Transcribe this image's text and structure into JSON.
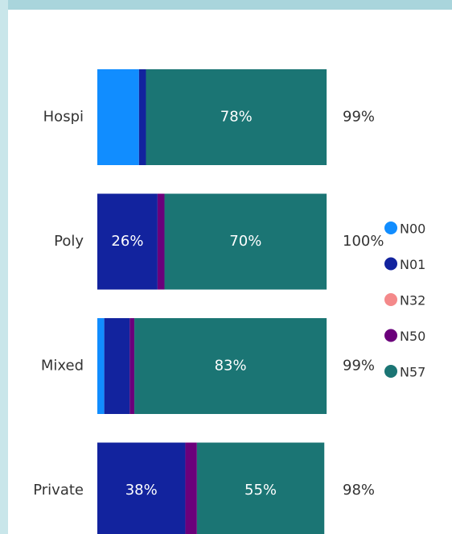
{
  "chart_data": {
    "type": "stacked_bar_horizontal",
    "categories": [
      "Hospi",
      "Poly",
      "Mixed",
      "Private"
    ],
    "series": [
      {
        "name": "N00",
        "color": "#118dff",
        "values": [
          18,
          0,
          3,
          0
        ],
        "value_labels": [
          null,
          null,
          null,
          null
        ]
      },
      {
        "name": "N01",
        "color": "#12239e",
        "values": [
          3,
          26,
          11,
          38
        ],
        "value_labels": [
          null,
          "26%",
          null,
          "38%"
        ]
      },
      {
        "name": "N32",
        "color": "#f4898a",
        "values": [
          0,
          0,
          0,
          0
        ],
        "value_labels": [
          null,
          null,
          null,
          null
        ]
      },
      {
        "name": "N50",
        "color": "#6b007b",
        "values": [
          0,
          3,
          2,
          5
        ],
        "value_labels": [
          null,
          null,
          null,
          null
        ]
      },
      {
        "name": "N57",
        "color": "#1b7574",
        "values": [
          78,
          70,
          83,
          55
        ],
        "value_labels": [
          "78%",
          "70%",
          "83%",
          "55%"
        ]
      }
    ],
    "totals": [
      99,
      100,
      99,
      98
    ],
    "total_labels": [
      "99%",
      "100%",
      "99%",
      "98%"
    ],
    "xlim": [
      0,
      100
    ],
    "legend": "right"
  }
}
